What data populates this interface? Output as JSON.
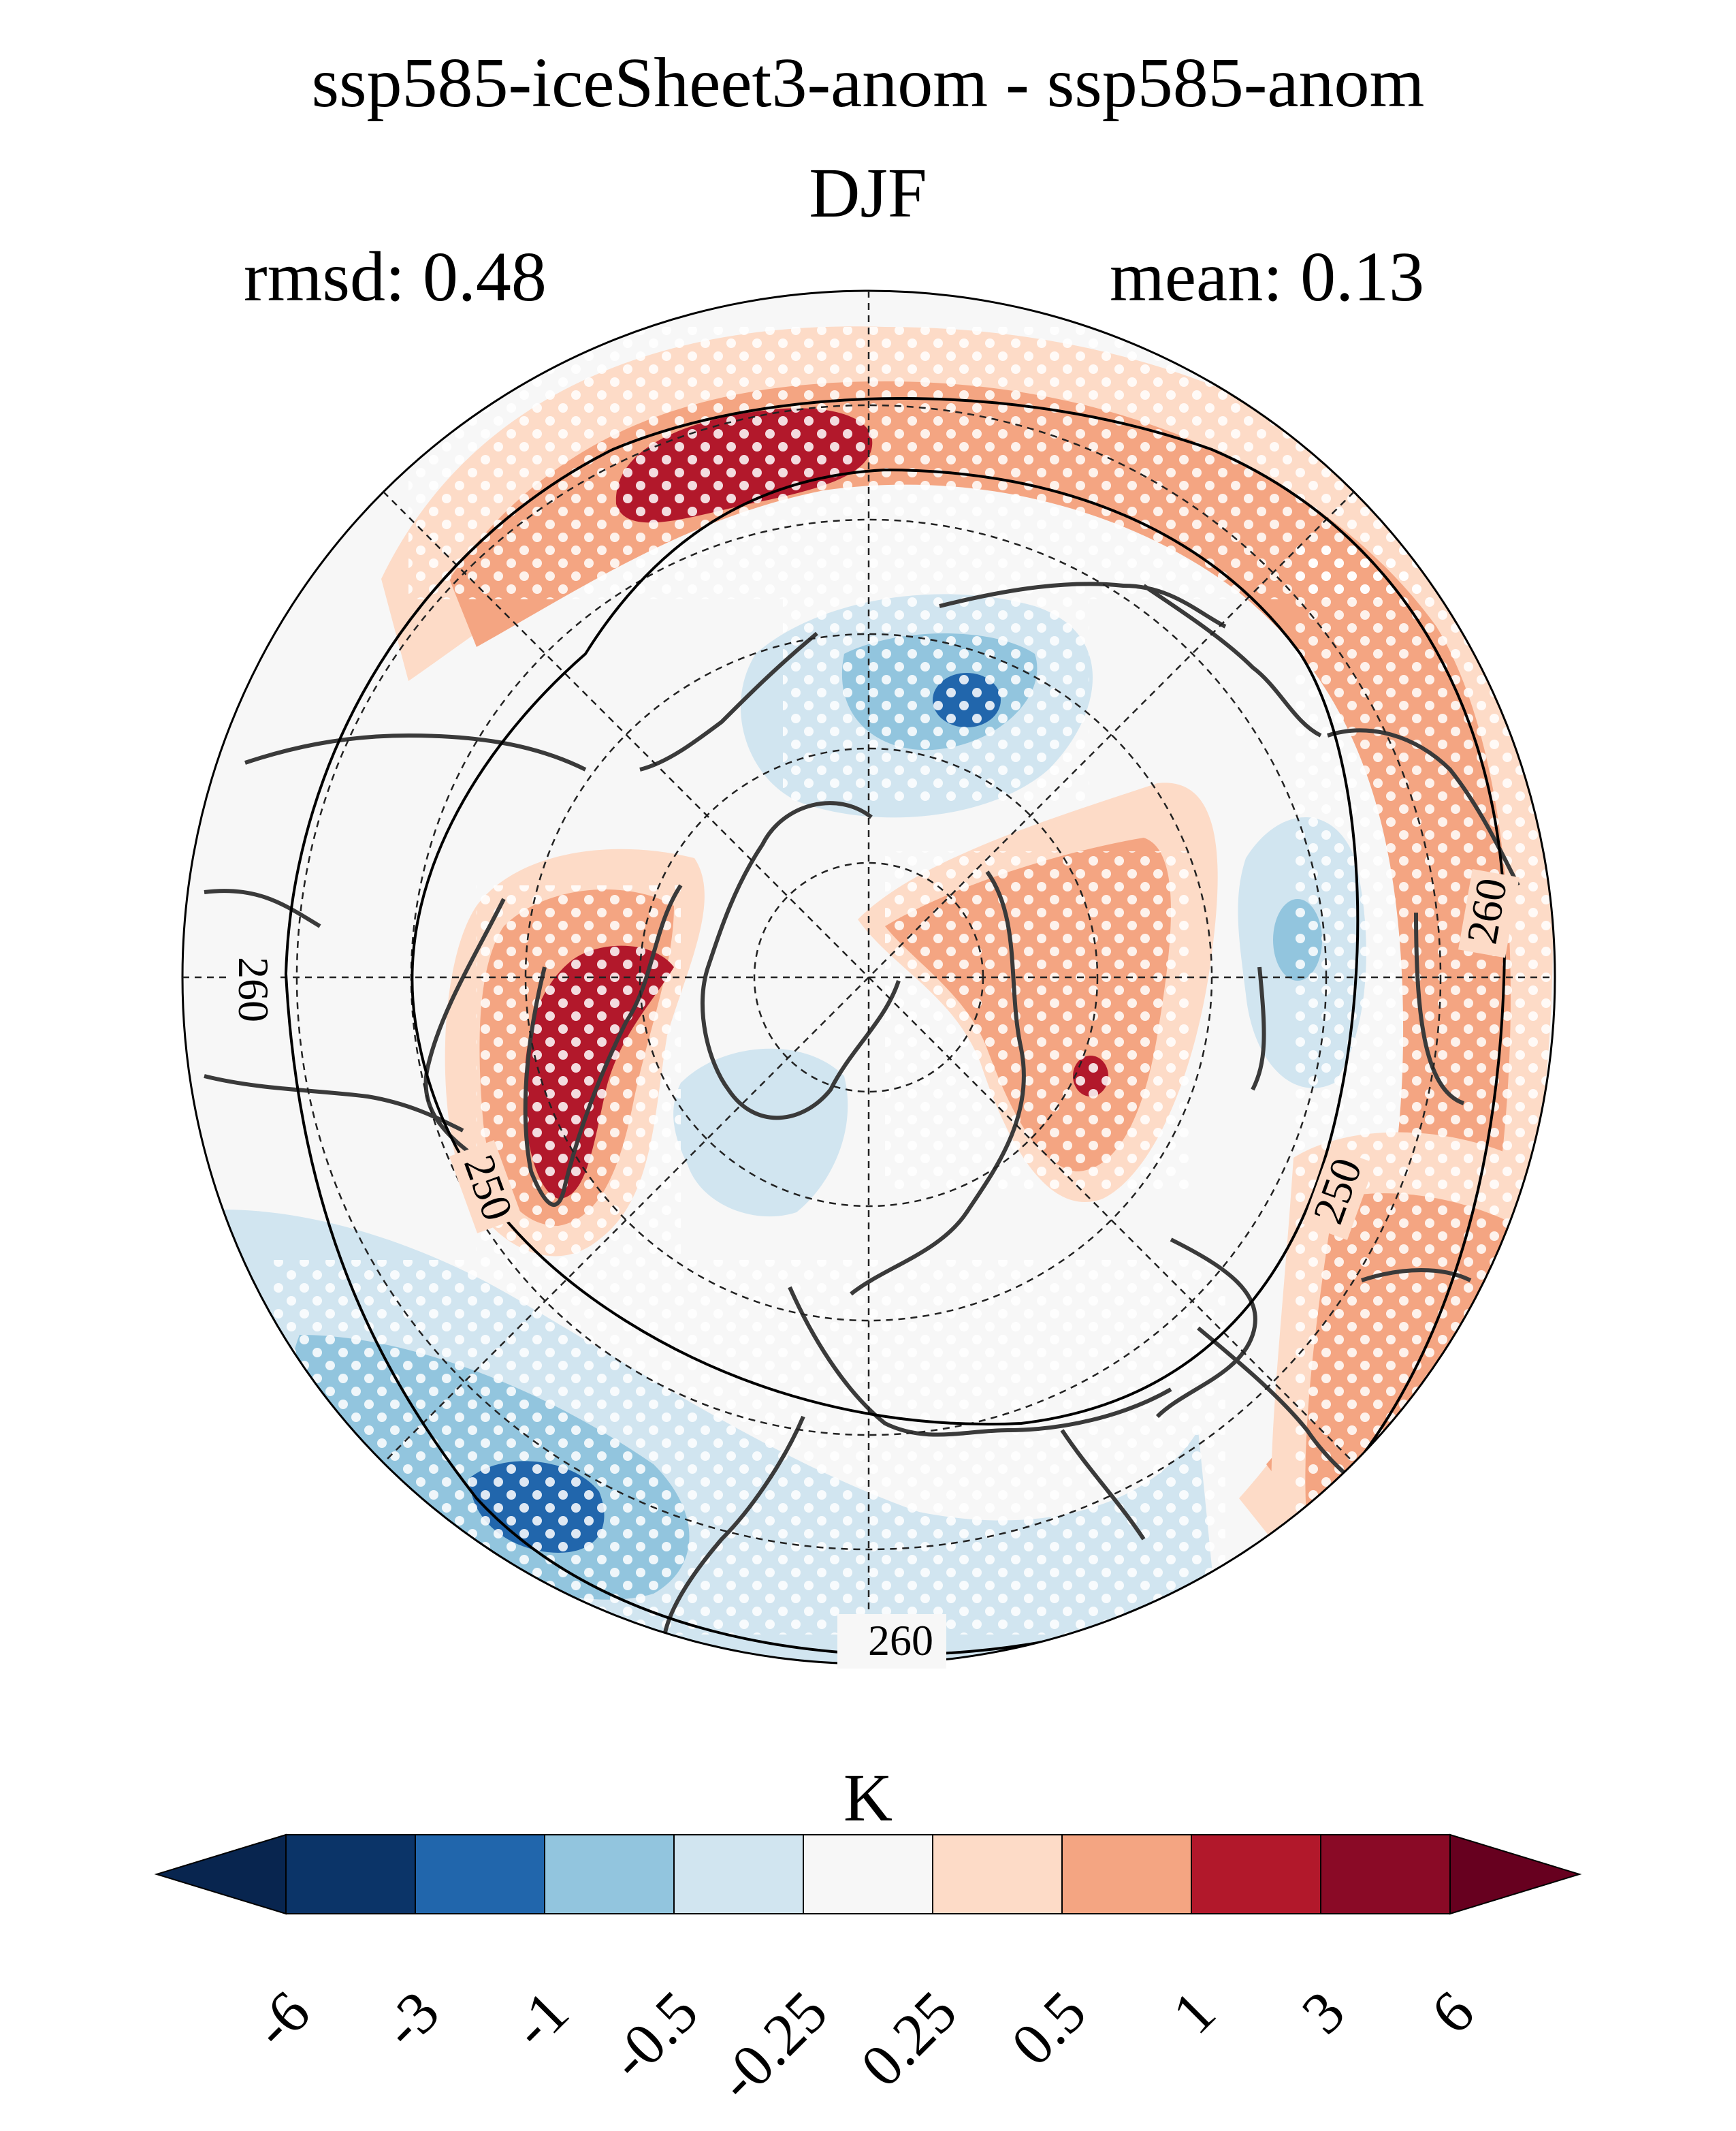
{
  "title": {
    "line1": "ssp585-iceSheet3-anom - ssp585-anom",
    "line2": "DJF"
  },
  "stats": {
    "rmsd_label": "rmsd: 0.48",
    "mean_label": "mean: 0.13"
  },
  "map": {
    "projection": "north-polar-stereographic",
    "contour_labels": [
      "260",
      "260",
      "260",
      "250",
      "250"
    ],
    "stippling": "significance-dots"
  },
  "colorbar": {
    "units": "K",
    "levels": [
      "-6",
      "-3",
      "-1",
      "-0.5",
      "-0.25",
      "0.25",
      "0.5",
      "1",
      "3",
      "6"
    ],
    "colors": [
      "#08254f",
      "#0b3468",
      "#2166ac",
      "#92c5de",
      "#d1e5f0",
      "#f7f7f7",
      "#fddbc7",
      "#f4a582",
      "#b2182b",
      "#8a0a26",
      "#67001f"
    ]
  }
}
